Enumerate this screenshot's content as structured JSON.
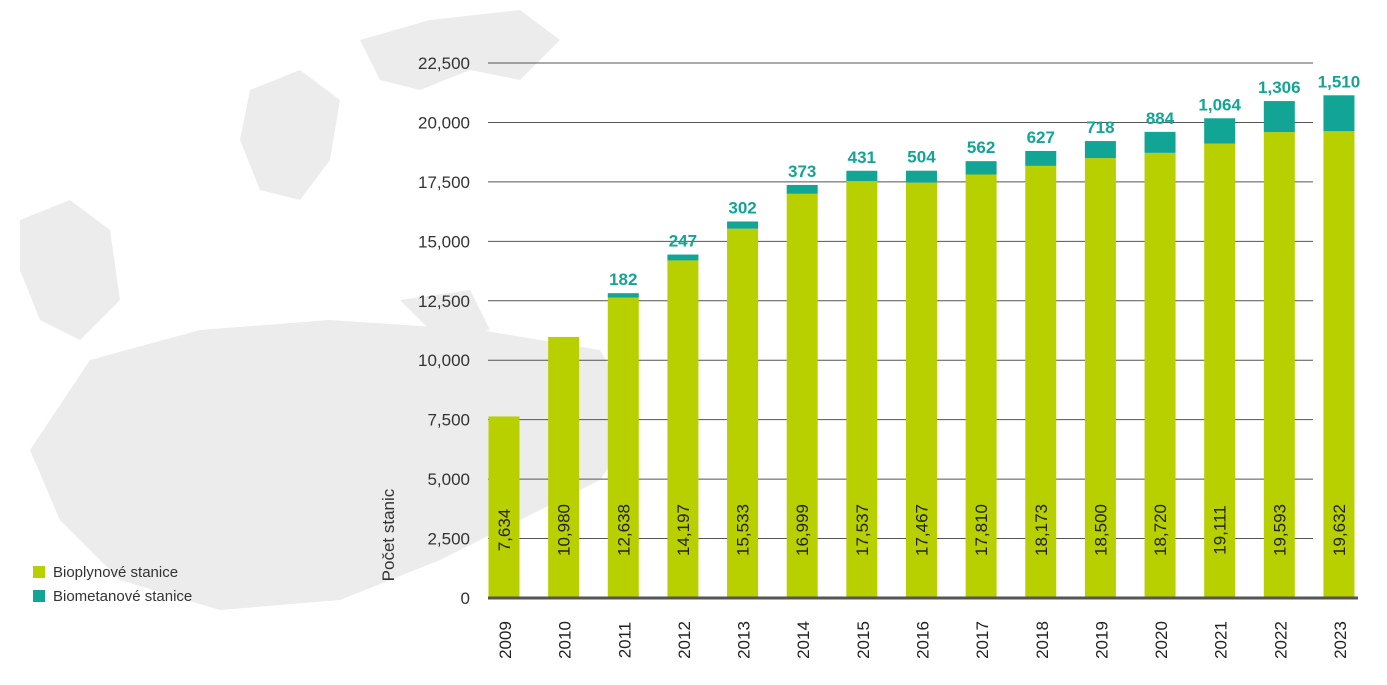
{
  "colors": {
    "biogas": "#b8cf00",
    "biomethane": "#12a596",
    "grid": "#555555",
    "axis": "#555555",
    "map": "#ececec",
    "text": "#333333"
  },
  "legend": [
    {
      "label": "Bioplynové stanice",
      "color": "#b8cf00"
    },
    {
      "label": "Biometanové stanice",
      "color": "#12a596"
    }
  ],
  "chart_data": {
    "type": "bar",
    "stacked": true,
    "categories": [
      "2009",
      "2010",
      "2011",
      "2012",
      "2013",
      "2014",
      "2015",
      "2016",
      "2017",
      "2018",
      "2019",
      "2020",
      "2021",
      "2022",
      "2023"
    ],
    "series": [
      {
        "name": "Bioplynové stanice",
        "values": [
          7634,
          10980,
          12638,
          14197,
          15533,
          16999,
          17537,
          17467,
          17810,
          18173,
          18500,
          18720,
          19111,
          19593,
          19632
        ],
        "labels": [
          "7,634",
          "10,980",
          "12,638",
          "14,197",
          "15,533",
          "16,999",
          "17,537",
          "17,467",
          "17,810",
          "18,173",
          "18,500",
          "18,720",
          "19,111",
          "19,593",
          "19,632"
        ]
      },
      {
        "name": "Biometanové stanice",
        "values": [
          0,
          0,
          182,
          247,
          302,
          373,
          431,
          504,
          562,
          627,
          718,
          884,
          1064,
          1306,
          1510
        ],
        "labels": [
          "",
          "",
          "182",
          "247",
          "302",
          "373",
          "431",
          "504",
          "562",
          "627",
          "718",
          "884",
          "1,064",
          "1,306",
          "1,510"
        ]
      }
    ],
    "ylabel": "Počet stanic",
    "xlabel": "",
    "ylim": [
      0,
      22500
    ],
    "yticks": [
      0,
      2500,
      5000,
      7500,
      10000,
      12500,
      15000,
      17500,
      20000,
      22500
    ],
    "ytick_labels": [
      "0",
      "2,500",
      "5,000",
      "7,500",
      "10,000",
      "12,500",
      "15,000",
      "17,500",
      "20,000",
      "22,500"
    ],
    "grid": true,
    "legend_position": "bottom-left"
  }
}
